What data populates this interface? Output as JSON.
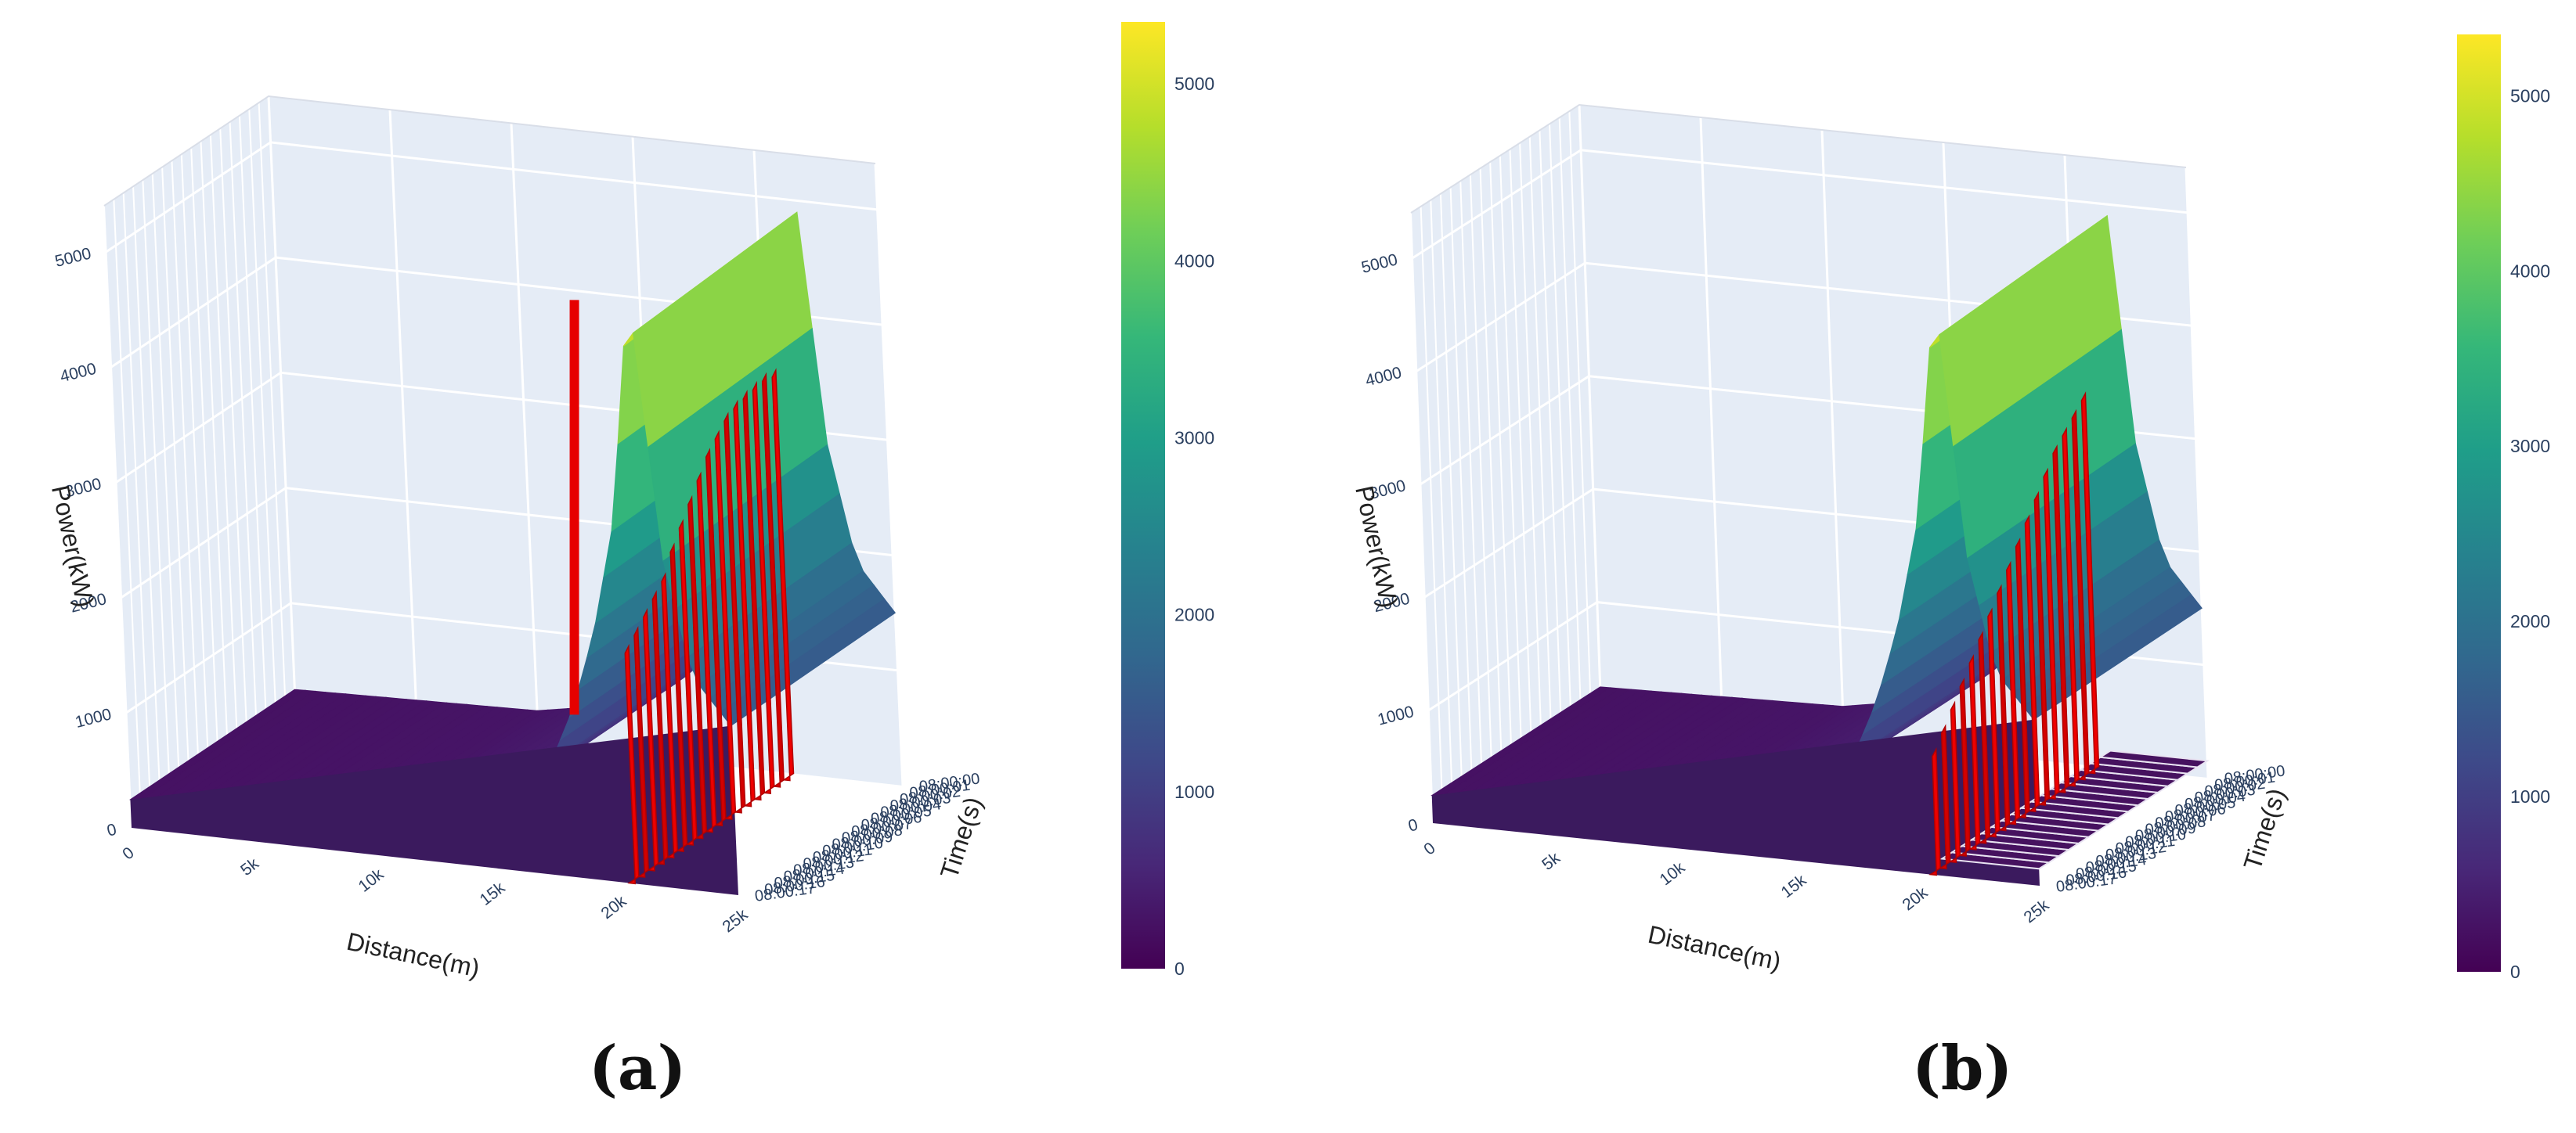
{
  "panels": [
    {
      "label": "(a)"
    },
    {
      "label": "(b)"
    }
  ],
  "chart_data": [
    {
      "type": "surface3d",
      "panel": "(a)",
      "zlabel": "Power(kW)",
      "xlabel": "Distance(m)",
      "ylabel": "Time(s)",
      "x_ticks": [
        "0",
        "5k",
        "10k",
        "15k",
        "20k",
        "25k"
      ],
      "y_ticks": [
        "08:00:00",
        "08:00:01",
        "08:00:02",
        "08:00:03",
        "08:00:04",
        "08:00:05",
        "08:00:06",
        "08:00:07",
        "08:00:08",
        "08:00:09",
        "08:00:10",
        "08:00:11",
        "08:00:12",
        "08:00:13",
        "08:00:14",
        "08:00:15",
        "08:00:16",
        "08:00:17"
      ],
      "z_ticks": [
        "0",
        "1000",
        "2000",
        "3000",
        "4000",
        "5000"
      ],
      "zlim": [
        0,
        5400
      ],
      "colorscale": "viridis",
      "colorbar": {
        "ticks": [
          "0",
          "1000",
          "2000",
          "3000",
          "4000",
          "5000"
        ],
        "range": [
          0,
          5350
        ]
      },
      "surface_profile": {
        "distance_m": [
          0,
          10000,
          14000,
          16000,
          17500,
          18500,
          19500,
          20500,
          21500,
          22500,
          23500,
          25000
        ],
        "power_kW": [
          250,
          300,
          450,
          700,
          1000,
          1500,
          2200,
          3200,
          5300,
          2900,
          1900,
          1500
        ]
      },
      "red_spike": {
        "distance_m": 11500,
        "power_kW": 3900
      },
      "red_wall": {
        "distance_m": 20500,
        "power_kW": [
          3450,
          3500,
          3520,
          3500,
          3480,
          3450,
          3400,
          3300,
          3200,
          3050,
          2900,
          2750,
          2600,
          2400,
          2300,
          2200,
          2100,
          2000
        ]
      }
    },
    {
      "type": "surface3d",
      "panel": "(b)",
      "zlabel": "Power(kW)",
      "xlabel": "Distance(m)",
      "ylabel": "Time(s)",
      "x_ticks": [
        "0",
        "5k",
        "10k",
        "15k",
        "20k",
        "25k"
      ],
      "y_ticks": [
        "08:00:00",
        "08:00:01",
        "08:00:02",
        "08:00:03",
        "08:00:04",
        "08:00:05",
        "08:00:06",
        "08:00:07",
        "08:00:08",
        "08:00:09",
        "08:00:10",
        "08:00:11",
        "08:00:12",
        "08:00:13",
        "08:00:14",
        "08:00:15",
        "08:00:16",
        "08:00:17"
      ],
      "z_ticks": [
        "0",
        "1000",
        "2000",
        "3000",
        "4000",
        "5000"
      ],
      "zlim": [
        0,
        5400
      ],
      "colorscale": "viridis",
      "colorbar": {
        "ticks": [
          "0",
          "1000",
          "2000",
          "3000",
          "4000",
          "5000"
        ],
        "range": [
          0,
          5350
        ]
      },
      "surface_profile": {
        "distance_m": [
          0,
          10000,
          14000,
          16000,
          17500,
          18500,
          19500,
          20500,
          21500,
          22500,
          23500,
          25000
        ],
        "power_kW": [
          250,
          300,
          450,
          700,
          1000,
          1500,
          2200,
          3200,
          5300,
          2900,
          1900,
          1500
        ]
      },
      "red_wall": {
        "distance_m": 20500,
        "power_kW": [
          3350,
          3300,
          3200,
          3100,
          3000,
          2850,
          2700,
          2550,
          2400,
          2250,
          2100,
          1950,
          1800,
          1650,
          1500,
          1350,
          1200,
          1050
        ]
      },
      "flat_band": {
        "distance_from_m": 21000,
        "distance_to_m": 25000,
        "power_kW": 150
      }
    }
  ]
}
